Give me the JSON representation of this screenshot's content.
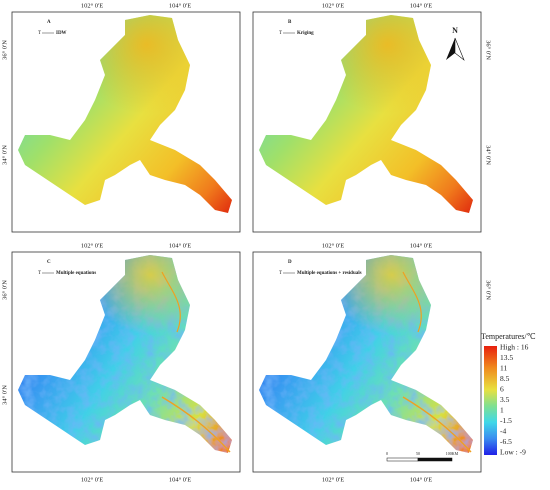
{
  "panels": [
    {
      "label": "A",
      "legend_symbol": "T",
      "legend_text": "IDW"
    },
    {
      "label": "B",
      "legend_symbol": "T",
      "legend_text": "Kriging"
    },
    {
      "label": "C",
      "legend_symbol": "T",
      "legend_text": "Multiple equations"
    },
    {
      "label": "D",
      "legend_symbol": "T",
      "legend_text": "Multiple equations + residuals"
    }
  ],
  "longitude_labels": [
    "102° 0'E",
    "104° 0'E"
  ],
  "latitude_labels": [
    "36° 0'N",
    "34° 0'N"
  ],
  "north_arrow": "N",
  "legend": {
    "title": "Temperatures/℃",
    "labels": [
      "High : 16",
      "13.5",
      "11",
      "8.5",
      "6",
      "3.5",
      "1",
      "-1.5",
      "-4",
      "-6.5",
      "Low : -9"
    ]
  },
  "scale_bar": [
    "0",
    "50",
    "100KM"
  ]
}
